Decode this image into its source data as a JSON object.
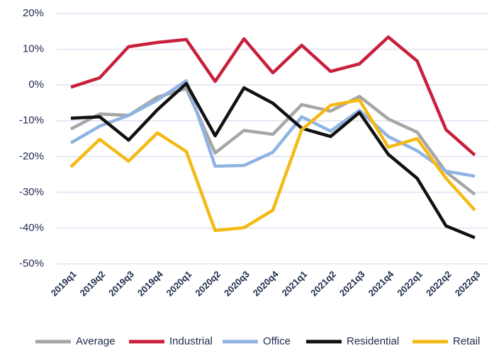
{
  "chart_data": {
    "type": "line",
    "categories": [
      "2019q1",
      "2019q2",
      "2019q3",
      "2019q4",
      "2020q1",
      "2020q2",
      "2020q3",
      "2020q4",
      "2021q1",
      "2021q2",
      "2021q3",
      "2021q4",
      "2022q1",
      "2022q2",
      "2022q3"
    ],
    "series": [
      {
        "name": "Average",
        "color": "#a6a6a6",
        "values": [
          -12.3,
          -8.1,
          -8.5,
          -3.4,
          -1,
          -19,
          -12.7,
          -13.8,
          -5.5,
          -7.3,
          -3.2,
          -9.5,
          -13.2,
          -24.3,
          -30.6
        ]
      },
      {
        "name": "Industrial",
        "color": "#c8203c",
        "values": [
          -0.6,
          2,
          10.7,
          11.9,
          12.7,
          1,
          12.9,
          3.4,
          11.1,
          3.8,
          5.9,
          13.4,
          6.7,
          -12.5,
          -19.6
        ]
      },
      {
        "name": "Office",
        "color": "#8fb4e3",
        "values": [
          -16.2,
          -11.5,
          -8.5,
          -4.2,
          1.2,
          -22.7,
          -22.5,
          -18.8,
          -8.9,
          -12.9,
          -7.1,
          -14.4,
          -18.4,
          -24.1,
          -25.5
        ]
      },
      {
        "name": "Residential",
        "color": "#111111",
        "values": [
          -9.3,
          -8.9,
          -15.4,
          -6.9,
          0.4,
          -14.2,
          -0.8,
          -5.1,
          -12.1,
          -14.4,
          -7.7,
          -19.4,
          -26.1,
          -39.4,
          -42.7
        ]
      },
      {
        "name": "Retail",
        "color": "#f5b914",
        "values": [
          -22.9,
          -15.2,
          -21.3,
          -13.4,
          -18.6,
          -40.7,
          -39.9,
          -35,
          -12.5,
          -5.7,
          -4.2,
          -17.4,
          -15,
          -26.1,
          -35
        ]
      }
    ],
    "ylim": [
      -50,
      20
    ],
    "yticks": [
      {
        "value": 20,
        "label": "20%"
      },
      {
        "value": 10,
        "label": "10%"
      },
      {
        "value": 0,
        "label": "0%"
      },
      {
        "value": -10,
        "label": "-10%"
      },
      {
        "value": -20,
        "label": "-20%"
      },
      {
        "value": -30,
        "label": "-30%"
      },
      {
        "value": -40,
        "label": "-40%"
      },
      {
        "value": -50,
        "label": "-50%"
      }
    ],
    "grid": true,
    "legend": "bottom"
  }
}
